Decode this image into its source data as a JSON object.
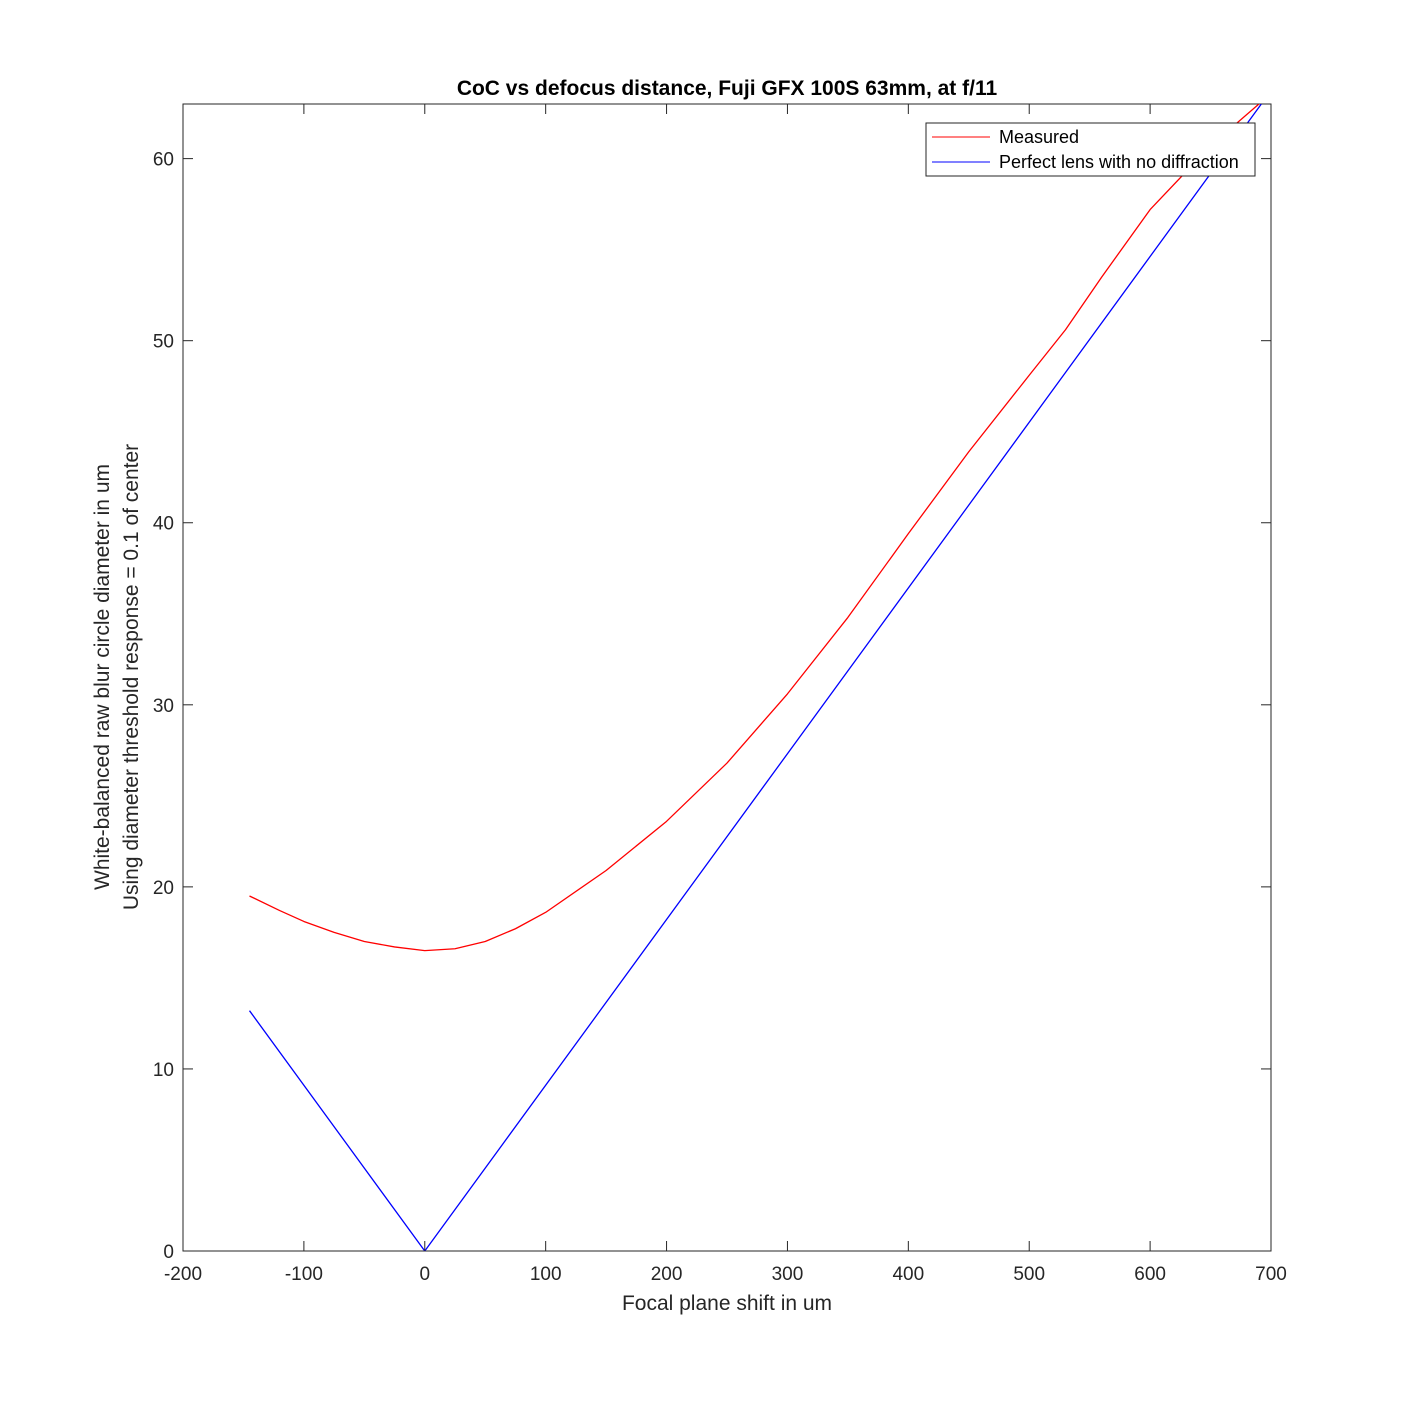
{
  "chart_data": {
    "type": "line",
    "title": "CoC vs defocus distance, Fuji GFX 100S 63mm, at f/11",
    "xlabel": "Focal plane shift in um",
    "ylabel": [
      "White-balanced raw blur circle diameter in um",
      "Using diameter threshold response = 0.1 of center"
    ],
    "xlim": [
      -200,
      700
    ],
    "ylim": [
      0,
      63
    ],
    "xticks": [
      -200,
      -100,
      0,
      100,
      200,
      300,
      400,
      500,
      600,
      700
    ],
    "yticks": [
      0,
      10,
      20,
      30,
      40,
      50,
      60
    ],
    "grid": false,
    "legend_position": "top-right",
    "series": [
      {
        "name": "Measured",
        "color": "#ff0000",
        "points": [
          [
            -145,
            19.5
          ],
          [
            -120,
            18.7
          ],
          [
            -100,
            18.1
          ],
          [
            -75,
            17.5
          ],
          [
            -50,
            17.0
          ],
          [
            -25,
            16.7
          ],
          [
            0,
            16.5
          ],
          [
            25,
            16.6
          ],
          [
            50,
            17.0
          ],
          [
            75,
            17.7
          ],
          [
            100,
            18.6
          ],
          [
            150,
            20.9
          ],
          [
            200,
            23.6
          ],
          [
            250,
            26.8
          ],
          [
            300,
            30.6
          ],
          [
            350,
            34.8
          ],
          [
            400,
            39.4
          ],
          [
            450,
            43.9
          ],
          [
            500,
            48.1
          ],
          [
            530,
            50.6
          ],
          [
            560,
            53.5
          ],
          [
            600,
            57.2
          ],
          [
            650,
            60.7
          ],
          [
            690,
            63.0
          ]
        ]
      },
      {
        "name": "Perfect lens with no diffraction",
        "color": "#0000ff",
        "points": [
          [
            -145,
            13.2
          ],
          [
            0,
            0
          ],
          [
            692,
            63.0
          ]
        ]
      }
    ]
  }
}
